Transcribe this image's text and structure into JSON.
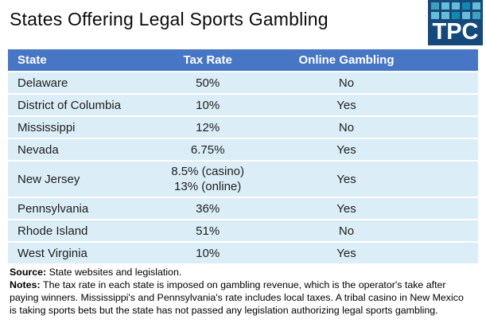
{
  "title": "States Offering Legal Sports Gambling",
  "logo": {
    "text": "TPC",
    "bg": "#16497B",
    "squares": [
      "#3FA0BE",
      "#66BCD6",
      "#66BCD6",
      "#118AB0",
      "#66BCD6",
      "#6BБFD8",
      "#66BCD6",
      "#118AB0",
      "#66BCD6",
      "#3FA0BE"
    ]
  },
  "colors": {
    "header_bg": "#4776C5",
    "row_bg": "#DBEDF7",
    "header_text": "#FFFFFF",
    "body_text": "#1E1E1E"
  },
  "chart_data": {
    "type": "table",
    "title": "States Offering Legal Sports Gambling",
    "columns": [
      "State",
      "Tax Rate",
      "Online Gambling"
    ],
    "rows": [
      [
        "Delaware",
        "50%",
        "No"
      ],
      [
        "District of Columbia",
        "10%",
        "Yes"
      ],
      [
        "Mississippi",
        "12%",
        "No"
      ],
      [
        "Nevada",
        "6.75%",
        "Yes"
      ],
      [
        "New Jersey",
        "8.5% (casino)\n13% (online)",
        "Yes"
      ],
      [
        "Pennsylvania",
        "36%",
        "Yes"
      ],
      [
        "Rhode Island",
        "51%",
        "No"
      ],
      [
        "West Virginia",
        "10%",
        "Yes"
      ]
    ],
    "source": "State websites and legislation.",
    "notes": "The tax rate in each state is imposed on gambling revenue, which is the operator's take after paying winners. Mississippi's and Pennsylvania's rate includes local taxes. A tribal casino in New Mexico is taking sports bets but the state has not passed any legislation authorizing legal sports gambling."
  },
  "footer": {
    "source_label": "Source",
    "source_sep": ": ",
    "source_text": "State websites and legislation.",
    "notes_label": "Notes",
    "notes_sep": ": ",
    "notes_text": "The tax rate in each state is imposed on gambling revenue, which is the operator's take after paying winners. Mississippi's and Pennsylvania's rate includes local taxes. A tribal casino in New Mexico is taking sports bets but the state has not passed any legislation authorizing legal sports gambling."
  }
}
